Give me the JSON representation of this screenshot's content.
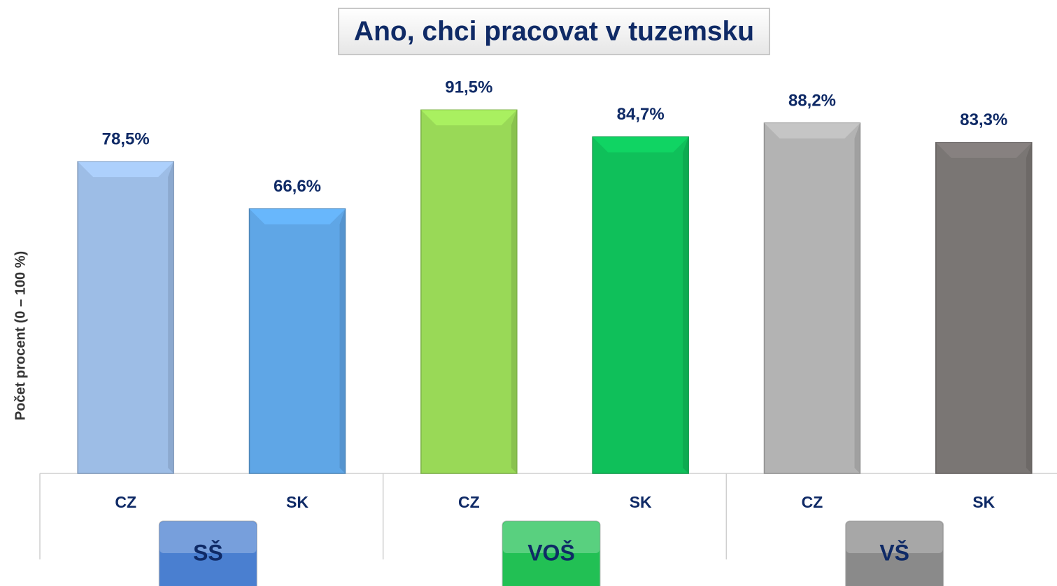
{
  "chart_data": {
    "type": "bar",
    "title": "Ano, chci pracovat v tuzemsku",
    "y_label": "Počet procent  (0 – 100 %)",
    "categories": [
      "CZ",
      "SK",
      "CZ",
      "SK",
      "CZ",
      "SK"
    ],
    "values": [
      78.5,
      66.6,
      91.5,
      84.7,
      88.2,
      83.3
    ],
    "value_labels": [
      "78,5%",
      "66,6%",
      "91,5%",
      "84,7%",
      "88,2%",
      "83,3%"
    ],
    "colors": [
      "#9dbde6",
      "#5fa6e6",
      "#99d957",
      "#0fc05a",
      "#b3b3b3",
      "#7a7674"
    ],
    "groups": [
      {
        "name": "SŠ",
        "color": "#4a7fd0"
      },
      {
        "name": "VOŠ",
        "color": "#22c054"
      },
      {
        "name": "VŠ",
        "color": "#8a8a8a"
      }
    ],
    "ylim": [
      0,
      100
    ]
  }
}
